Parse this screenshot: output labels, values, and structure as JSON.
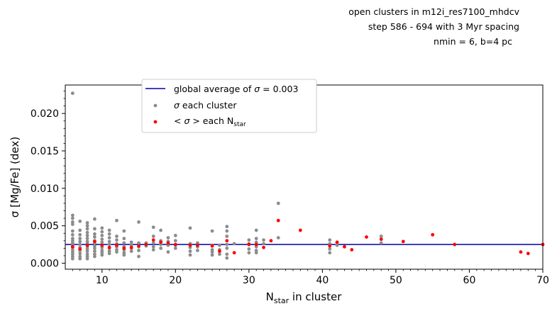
{
  "chart_data": {
    "type": "scatter",
    "title_lines": [
      "open clusters in m12i_res7100_mhdcv",
      "step 586 - 694 with 3 Myr spacing",
      "nmin = 6, b=4 pc"
    ],
    "xlabel": {
      "main": "N",
      "sub": "star",
      "rest": " in cluster"
    },
    "ylabel": "σ [Mg/Fe] (dex)",
    "xlim": [
      5,
      70
    ],
    "ylim": [
      -0.0008,
      0.0238
    ],
    "x_ticks": [
      10,
      20,
      30,
      40,
      50,
      60,
      70
    ],
    "y_ticks": [
      0.0,
      0.005,
      0.01,
      0.015,
      0.02
    ],
    "y_tick_labels": [
      "0.000",
      "0.005",
      "0.010",
      "0.015",
      "0.020"
    ],
    "grid": false,
    "legend": {
      "placement": "upper-left",
      "entries": [
        {
          "text_pre": "global average of ",
          "sym": "σ",
          "text_post": " = 0.003"
        },
        {
          "text_pre": "",
          "sym": "σ",
          "text_post": " each cluster"
        },
        {
          "text_pre": "< ",
          "sym": "σ",
          "text_post": " > each N",
          "sub": "star"
        }
      ]
    },
    "series": [
      {
        "name": "global average",
        "kind": "hline",
        "color": "#0000aa",
        "y": 0.0025
      },
      {
        "name": "each cluster",
        "kind": "scatter",
        "color": "#8c8c8c",
        "points": [
          [
            6,
            0.0227
          ],
          [
            6,
            0.0064
          ],
          [
            6,
            0.006
          ],
          [
            6,
            0.0055
          ],
          [
            6,
            0.0052
          ],
          [
            6,
            0.0043
          ],
          [
            6,
            0.0038
          ],
          [
            6,
            0.0033
          ],
          [
            6,
            0.003
          ],
          [
            6,
            0.0027
          ],
          [
            6,
            0.0024
          ],
          [
            6,
            0.0021
          ],
          [
            6,
            0.0018
          ],
          [
            6,
            0.0015
          ],
          [
            6,
            0.0012
          ],
          [
            6,
            0.0009
          ],
          [
            6,
            0.0006
          ],
          [
            7,
            0.0056
          ],
          [
            7,
            0.0044
          ],
          [
            7,
            0.0038
          ],
          [
            7,
            0.0033
          ],
          [
            7,
            0.0029
          ],
          [
            7,
            0.0025
          ],
          [
            7,
            0.0021
          ],
          [
            7,
            0.0017
          ],
          [
            7,
            0.0013
          ],
          [
            7,
            0.0009
          ],
          [
            7,
            0.0006
          ],
          [
            8,
            0.0054
          ],
          [
            8,
            0.005
          ],
          [
            8,
            0.0046
          ],
          [
            8,
            0.0041
          ],
          [
            8,
            0.0037
          ],
          [
            8,
            0.0033
          ],
          [
            8,
            0.0029
          ],
          [
            8,
            0.0026
          ],
          [
            8,
            0.0022
          ],
          [
            8,
            0.0019
          ],
          [
            8,
            0.0016
          ],
          [
            8,
            0.0012
          ],
          [
            8,
            0.0009
          ],
          [
            8,
            0.0006
          ],
          [
            9,
            0.0059
          ],
          [
            9,
            0.0046
          ],
          [
            9,
            0.0039
          ],
          [
            9,
            0.0035
          ],
          [
            9,
            0.003
          ],
          [
            9,
            0.0027
          ],
          [
            9,
            0.0023
          ],
          [
            9,
            0.002
          ],
          [
            9,
            0.0016
          ],
          [
            9,
            0.0012
          ],
          [
            9,
            0.0009
          ],
          [
            10,
            0.0047
          ],
          [
            10,
            0.0042
          ],
          [
            10,
            0.0037
          ],
          [
            10,
            0.0032
          ],
          [
            10,
            0.0028
          ],
          [
            10,
            0.0024
          ],
          [
            10,
            0.0021
          ],
          [
            10,
            0.0017
          ],
          [
            10,
            0.0014
          ],
          [
            10,
            0.0011
          ],
          [
            11,
            0.0044
          ],
          [
            11,
            0.0039
          ],
          [
            11,
            0.0034
          ],
          [
            11,
            0.0029
          ],
          [
            11,
            0.0025
          ],
          [
            11,
            0.002
          ],
          [
            11,
            0.0016
          ],
          [
            11,
            0.0013
          ],
          [
            12,
            0.0057
          ],
          [
            12,
            0.0036
          ],
          [
            12,
            0.0031
          ],
          [
            12,
            0.0026
          ],
          [
            12,
            0.0022
          ],
          [
            12,
            0.0018
          ],
          [
            12,
            0.0015
          ],
          [
            13,
            0.0043
          ],
          [
            13,
            0.0033
          ],
          [
            13,
            0.0027
          ],
          [
            13,
            0.0022
          ],
          [
            13,
            0.0018
          ],
          [
            13,
            0.0014
          ],
          [
            13,
            0.0011
          ],
          [
            14,
            0.0028
          ],
          [
            14,
            0.0024
          ],
          [
            14,
            0.002
          ],
          [
            14,
            0.0016
          ],
          [
            15,
            0.0055
          ],
          [
            15,
            0.0027
          ],
          [
            15,
            0.0022
          ],
          [
            15,
            0.0017
          ],
          [
            15,
            0.0009
          ],
          [
            16,
            0.0027
          ],
          [
            16,
            0.0023
          ],
          [
            17,
            0.0048
          ],
          [
            17,
            0.0036
          ],
          [
            17,
            0.0027
          ],
          [
            17,
            0.0022
          ],
          [
            17,
            0.0018
          ],
          [
            18,
            0.0044
          ],
          [
            18,
            0.003
          ],
          [
            18,
            0.0025
          ],
          [
            18,
            0.002
          ],
          [
            19,
            0.0034
          ],
          [
            19,
            0.0029
          ],
          [
            19,
            0.0024
          ],
          [
            19,
            0.0015
          ],
          [
            20,
            0.0037
          ],
          [
            20,
            0.003
          ],
          [
            20,
            0.0024
          ],
          [
            20,
            0.002
          ],
          [
            22,
            0.0047
          ],
          [
            22,
            0.0026
          ],
          [
            22,
            0.0021
          ],
          [
            22,
            0.0016
          ],
          [
            22,
            0.0011
          ],
          [
            23,
            0.0027
          ],
          [
            23,
            0.0022
          ],
          [
            23,
            0.0017
          ],
          [
            25,
            0.0043
          ],
          [
            25,
            0.0024
          ],
          [
            25,
            0.0018
          ],
          [
            25,
            0.0015
          ],
          [
            25,
            0.0011
          ],
          [
            26,
            0.0024
          ],
          [
            26,
            0.0018
          ],
          [
            26,
            0.0012
          ],
          [
            27,
            0.0049
          ],
          [
            27,
            0.0043
          ],
          [
            27,
            0.0036
          ],
          [
            27,
            0.0025
          ],
          [
            27,
            0.002
          ],
          [
            27,
            0.0012
          ],
          [
            27,
            0.0007
          ],
          [
            28,
            0.0026
          ],
          [
            30,
            0.0031
          ],
          [
            30,
            0.0026
          ],
          [
            30,
            0.0019
          ],
          [
            30,
            0.0014
          ],
          [
            31,
            0.0044
          ],
          [
            31,
            0.0033
          ],
          [
            31,
            0.0028
          ],
          [
            31,
            0.0022
          ],
          [
            31,
            0.0017
          ],
          [
            31,
            0.0014
          ],
          [
            32,
            0.0031
          ],
          [
            32,
            0.0026
          ],
          [
            34,
            0.008
          ],
          [
            34,
            0.0034
          ],
          [
            41,
            0.0031
          ],
          [
            41,
            0.0026
          ],
          [
            41,
            0.0019
          ],
          [
            41,
            0.0014
          ],
          [
            42,
            0.0028
          ],
          [
            42,
            0.0024
          ],
          [
            48,
            0.0036
          ],
          [
            48,
            0.0027
          ]
        ]
      },
      {
        "name": "mean each N_star",
        "kind": "scatter",
        "color": "#ff0000",
        "points": [
          [
            6,
            0.0022
          ],
          [
            7,
            0.0019
          ],
          [
            8,
            0.0024
          ],
          [
            9,
            0.0029
          ],
          [
            10,
            0.0024
          ],
          [
            11,
            0.0021
          ],
          [
            12,
            0.0024
          ],
          [
            13,
            0.002
          ],
          [
            14,
            0.0021
          ],
          [
            15,
            0.0023
          ],
          [
            16,
            0.0025
          ],
          [
            17,
            0.0031
          ],
          [
            18,
            0.0028
          ],
          [
            19,
            0.0027
          ],
          [
            20,
            0.0025
          ],
          [
            22,
            0.0024
          ],
          [
            23,
            0.0024
          ],
          [
            25,
            0.0023
          ],
          [
            26,
            0.0016
          ],
          [
            27,
            0.003
          ],
          [
            28,
            0.0014
          ],
          [
            30,
            0.0025
          ],
          [
            31,
            0.0025
          ],
          [
            32,
            0.0021
          ],
          [
            33,
            0.003
          ],
          [
            34,
            0.0057
          ],
          [
            37,
            0.0044
          ],
          [
            41,
            0.0023
          ],
          [
            42,
            0.0028
          ],
          [
            43,
            0.0022
          ],
          [
            44,
            0.0018
          ],
          [
            46,
            0.0035
          ],
          [
            48,
            0.0032
          ],
          [
            51,
            0.0029
          ],
          [
            55,
            0.0038
          ],
          [
            58,
            0.0025
          ],
          [
            67,
            0.0015
          ],
          [
            68,
            0.0013
          ],
          [
            70,
            0.0025
          ]
        ]
      }
    ]
  }
}
